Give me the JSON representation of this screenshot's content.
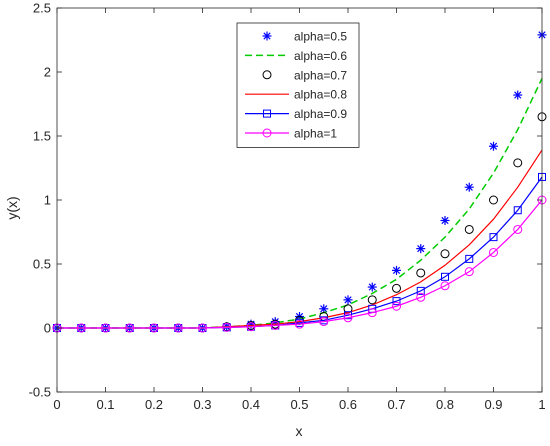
{
  "chart_data": {
    "type": "line",
    "xlabel": "x",
    "ylabel": "y(x)",
    "xlim": [
      0,
      1
    ],
    "ylim": [
      -0.5,
      2.5
    ],
    "x_ticks": [
      "0",
      "0.1",
      "0.2",
      "0.3",
      "0.4",
      "0.5",
      "0.6",
      "0.7",
      "0.8",
      "0.9",
      "1"
    ],
    "y_ticks": [
      "-0.5",
      "0",
      "0.5",
      "1",
      "1.5",
      "2",
      "2.5"
    ],
    "grid": false,
    "legend_position": "top-center",
    "x": [
      0,
      0.05,
      0.1,
      0.15,
      0.2,
      0.25,
      0.3,
      0.35,
      0.4,
      0.45,
      0.5,
      0.55,
      0.6,
      0.65,
      0.7,
      0.75,
      0.8,
      0.85,
      0.9,
      0.95,
      1
    ],
    "series": [
      {
        "name": "alpha=0.5",
        "style": "markers",
        "marker": "asterisk",
        "color": "#0000ff",
        "values": [
          0,
          0,
          0,
          0,
          0,
          0,
          0,
          0.01,
          0.03,
          0.05,
          0.09,
          0.15,
          0.22,
          0.32,
          0.45,
          0.62,
          0.84,
          1.1,
          1.42,
          1.82,
          2.29
        ]
      },
      {
        "name": "alpha=0.6",
        "style": "dashed",
        "marker": "none",
        "color": "#00cc00",
        "values": [
          0,
          0,
          0,
          0,
          0,
          0,
          0,
          0.01,
          0.02,
          0.04,
          0.07,
          0.12,
          0.18,
          0.27,
          0.38,
          0.53,
          0.71,
          0.93,
          1.21,
          1.55,
          1.95
        ]
      },
      {
        "name": "alpha=0.7",
        "style": "markers",
        "marker": "circle",
        "color": "#000000",
        "values": [
          0,
          0,
          0,
          0,
          0,
          0,
          0,
          0.01,
          0.02,
          0.03,
          0.06,
          0.09,
          0.15,
          0.22,
          0.31,
          0.43,
          0.58,
          0.77,
          1.0,
          1.29,
          1.65
        ]
      },
      {
        "name": "alpha=0.8",
        "style": "solid",
        "marker": "none",
        "color": "#ff0000",
        "values": [
          0,
          0,
          0,
          0,
          0,
          0,
          0,
          0.01,
          0.02,
          0.03,
          0.05,
          0.08,
          0.12,
          0.18,
          0.26,
          0.36,
          0.49,
          0.65,
          0.85,
          1.1,
          1.39
        ]
      },
      {
        "name": "alpha=0.9",
        "style": "solid",
        "marker": "square",
        "color": "#0000ff",
        "values": [
          0,
          0,
          0,
          0,
          0,
          0,
          0,
          0.005,
          0.01,
          0.02,
          0.04,
          0.06,
          0.1,
          0.15,
          0.21,
          0.29,
          0.4,
          0.54,
          0.71,
          0.92,
          1.18
        ]
      },
      {
        "name": "alpha=1",
        "style": "solid",
        "marker": "circle",
        "color": "#ff00ff",
        "values": [
          0,
          0,
          0,
          0,
          0,
          0,
          0,
          0.005,
          0.01,
          0.02,
          0.03,
          0.05,
          0.08,
          0.12,
          0.17,
          0.24,
          0.33,
          0.44,
          0.59,
          0.77,
          1.0
        ]
      }
    ]
  }
}
